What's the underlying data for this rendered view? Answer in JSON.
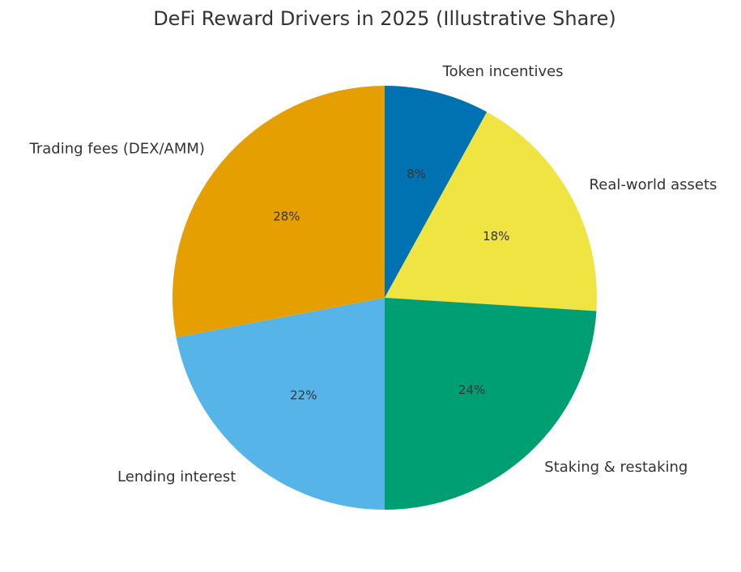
{
  "chart_data": {
    "type": "pie",
    "title": "DeFi Reward Drivers in 2025 (Illustrative Share)",
    "categories": [
      "Token incentives",
      "Real-world assets",
      "Staking & restaking",
      "Lending interest",
      "Trading fees (DEX/AMM)"
    ],
    "values": [
      8,
      18,
      24,
      22,
      28
    ],
    "value_labels": [
      "8%",
      "18%",
      "24%",
      "22%",
      "28%"
    ],
    "colors": [
      "#0072b2",
      "#f0e442",
      "#009e73",
      "#56b4e9",
      "#e69f00"
    ]
  }
}
